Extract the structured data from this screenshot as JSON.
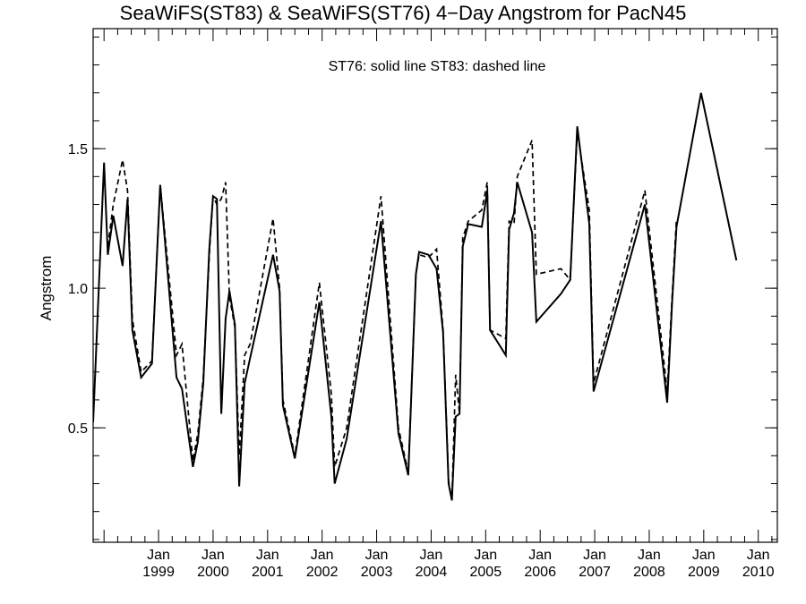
{
  "chart_data": {
    "type": "line",
    "title": "SeaWiFS(ST83) & SeaWiFS(ST76) 4−Day Angstrom for PacN45",
    "annotation": "ST76: solid line   ST83: dashed line",
    "xlabel": "",
    "ylabel": "Angstrom",
    "xlim": [
      1997.8,
      2010.35
    ],
    "ylim": [
      0.09,
      1.93
    ],
    "grid": false,
    "y_ticks": [
      {
        "value": 0.5,
        "label": "0.5"
      },
      {
        "value": 1.0,
        "label": "1.0"
      },
      {
        "value": 1.5,
        "label": "1.5"
      }
    ],
    "x_ticks": [
      {
        "value": 1999,
        "month": "Jan",
        "year": "1999"
      },
      {
        "value": 2000,
        "month": "Jan",
        "year": "2000"
      },
      {
        "value": 2001,
        "month": "Jan",
        "year": "2001"
      },
      {
        "value": 2002,
        "month": "Jan",
        "year": "2002"
      },
      {
        "value": 2003,
        "month": "Jan",
        "year": "2003"
      },
      {
        "value": 2004,
        "month": "Jan",
        "year": "2004"
      },
      {
        "value": 2005,
        "month": "Jan",
        "year": "2005"
      },
      {
        "value": 2006,
        "month": "Jan",
        "year": "2006"
      },
      {
        "value": 2007,
        "month": "Jan",
        "year": "2007"
      },
      {
        "value": 2008,
        "month": "Jan",
        "year": "2008"
      },
      {
        "value": 2009,
        "month": "Jan",
        "year": "2009"
      },
      {
        "value": 2010,
        "month": "Jan",
        "year": "2010"
      }
    ],
    "series": [
      {
        "name": "ST76",
        "style": "solid",
        "points": [
          [
            1997.8,
            0.52
          ],
          [
            1998.0,
            1.45
          ],
          [
            1998.07,
            1.12
          ],
          [
            1998.17,
            1.26
          ],
          [
            1998.34,
            1.08
          ],
          [
            1998.43,
            1.32
          ],
          [
            1998.52,
            0.85
          ],
          [
            1998.68,
            0.68
          ],
          [
            1998.88,
            0.73
          ],
          [
            1999.03,
            1.37
          ],
          [
            1999.33,
            0.68
          ],
          [
            1999.43,
            0.64
          ],
          [
            1999.63,
            0.36
          ],
          [
            1999.72,
            0.45
          ],
          [
            1999.82,
            0.66
          ],
          [
            1999.93,
            1.14
          ],
          [
            2000.0,
            1.33
          ],
          [
            2000.07,
            1.32
          ],
          [
            2000.15,
            0.55
          ],
          [
            2000.23,
            0.89
          ],
          [
            2000.3,
            0.99
          ],
          [
            2000.4,
            0.87
          ],
          [
            2000.48,
            0.29
          ],
          [
            2000.58,
            0.66
          ],
          [
            2000.68,
            0.75
          ],
          [
            2001.1,
            1.12
          ],
          [
            2001.22,
            0.99
          ],
          [
            2001.28,
            0.58
          ],
          [
            2001.5,
            0.39
          ],
          [
            2001.95,
            0.95
          ],
          [
            2002.17,
            0.54
          ],
          [
            2002.23,
            0.3
          ],
          [
            2002.45,
            0.46
          ],
          [
            2003.08,
            1.24
          ],
          [
            2003.4,
            0.48
          ],
          [
            2003.58,
            0.33
          ],
          [
            2003.72,
            1.05
          ],
          [
            2003.78,
            1.13
          ],
          [
            2003.95,
            1.12
          ],
          [
            2004.1,
            1.07
          ],
          [
            2004.22,
            0.84
          ],
          [
            2004.32,
            0.3
          ],
          [
            2004.38,
            0.24
          ],
          [
            2004.45,
            0.54
          ],
          [
            2004.52,
            0.55
          ],
          [
            2004.58,
            1.15
          ],
          [
            2004.68,
            1.23
          ],
          [
            2004.93,
            1.22
          ],
          [
            2005.03,
            1.35
          ],
          [
            2005.08,
            0.85
          ],
          [
            2005.37,
            0.76
          ],
          [
            2005.43,
            1.21
          ],
          [
            2005.52,
            1.27
          ],
          [
            2005.58,
            1.38
          ],
          [
            2005.85,
            1.2
          ],
          [
            2005.93,
            0.88
          ],
          [
            2006.38,
            0.98
          ],
          [
            2006.55,
            1.03
          ],
          [
            2006.68,
            1.58
          ],
          [
            2006.9,
            1.23
          ],
          [
            2006.98,
            0.63
          ],
          [
            2007.92,
            1.3
          ],
          [
            2008.33,
            0.59
          ],
          [
            2008.42,
            0.95
          ],
          [
            2008.5,
            1.22
          ],
          [
            2008.95,
            1.7
          ],
          [
            2009.6,
            1.1
          ]
        ]
      },
      {
        "name": "ST83",
        "style": "dashed",
        "points": [
          [
            1998.07,
            1.15
          ],
          [
            1998.17,
            1.3
          ],
          [
            1998.34,
            1.46
          ],
          [
            1998.43,
            1.35
          ],
          [
            1998.52,
            0.89
          ],
          [
            1998.68,
            0.7
          ],
          [
            1998.88,
            0.74
          ],
          [
            1999.03,
            1.37
          ],
          [
            1999.33,
            0.76
          ],
          [
            1999.43,
            0.8
          ],
          [
            1999.63,
            0.38
          ],
          [
            1999.72,
            0.48
          ],
          [
            1999.82,
            0.68
          ],
          [
            1999.93,
            1.12
          ],
          [
            2000.0,
            1.33
          ],
          [
            2000.07,
            1.3
          ],
          [
            2000.15,
            1.32
          ],
          [
            2000.23,
            1.38
          ],
          [
            2000.3,
            0.97
          ],
          [
            2000.4,
            0.86
          ],
          [
            2000.48,
            0.4
          ],
          [
            2000.58,
            0.76
          ],
          [
            2000.68,
            0.8
          ],
          [
            2001.1,
            1.25
          ],
          [
            2001.22,
            1.0
          ],
          [
            2001.28,
            0.6
          ],
          [
            2001.5,
            0.4
          ],
          [
            2001.95,
            1.02
          ],
          [
            2002.17,
            0.62
          ],
          [
            2002.23,
            0.36
          ],
          [
            2002.45,
            0.5
          ],
          [
            2003.08,
            1.33
          ],
          [
            2003.4,
            0.5
          ],
          [
            2003.58,
            0.34
          ],
          [
            2003.72,
            1.05
          ],
          [
            2003.78,
            1.12
          ],
          [
            2003.95,
            1.11
          ],
          [
            2004.1,
            1.14
          ],
          [
            2004.22,
            0.85
          ],
          [
            2004.32,
            0.31
          ],
          [
            2004.38,
            0.24
          ],
          [
            2004.45,
            0.69
          ],
          [
            2004.52,
            0.55
          ],
          [
            2004.58,
            1.18
          ],
          [
            2004.68,
            1.24
          ],
          [
            2004.93,
            1.28
          ],
          [
            2005.03,
            1.38
          ],
          [
            2005.08,
            0.85
          ],
          [
            2005.37,
            0.82
          ],
          [
            2005.43,
            1.24
          ],
          [
            2005.52,
            1.23
          ],
          [
            2005.58,
            1.4
          ],
          [
            2005.85,
            1.53
          ],
          [
            2005.93,
            1.05
          ],
          [
            2006.38,
            1.07
          ],
          [
            2006.55,
            1.03
          ],
          [
            2006.68,
            1.56
          ],
          [
            2006.9,
            1.28
          ],
          [
            2006.98,
            0.66
          ],
          [
            2007.92,
            1.35
          ],
          [
            2008.33,
            0.63
          ],
          [
            2008.42,
            0.97
          ],
          [
            2008.5,
            1.25
          ]
        ]
      }
    ]
  }
}
